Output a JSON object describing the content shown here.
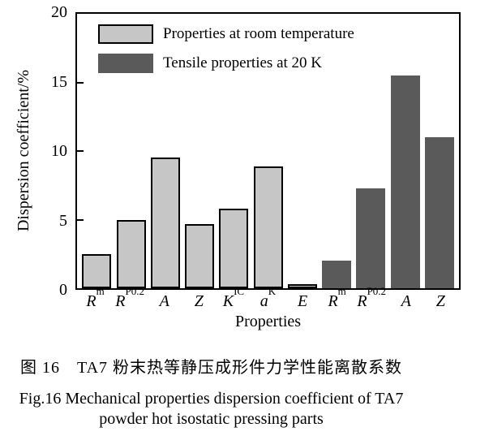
{
  "chart_data": {
    "type": "bar",
    "title": "",
    "xlabel": "Properties",
    "ylabel": "Dispersion coefficient/%",
    "ylim": [
      0,
      20
    ],
    "yticks": [
      0,
      5,
      10,
      15,
      20
    ],
    "yticks_inner": [
      5,
      10,
      15
    ],
    "grid": false,
    "legend_position": "top-left-inside",
    "categories": [
      "Rm",
      "RP0.2",
      "A",
      "Z",
      "KIC",
      "aK",
      "E",
      "Rm",
      "RP0.2",
      "A",
      "Z"
    ],
    "bars": [
      {
        "main": "R",
        "sub": "m",
        "value": 2.5,
        "series": "room"
      },
      {
        "main": "R",
        "sub": "P0.2",
        "value": 5.0,
        "series": "room"
      },
      {
        "main": "A",
        "sub": "",
        "value": 9.5,
        "series": "room"
      },
      {
        "main": "Z",
        "sub": "",
        "value": 4.7,
        "series": "room"
      },
      {
        "main": "K",
        "sub": "IC",
        "value": 5.8,
        "series": "room"
      },
      {
        "main": "a",
        "sub": "K",
        "value": 8.9,
        "series": "room"
      },
      {
        "main": "E",
        "sub": "",
        "value": 0.3,
        "series": "room"
      },
      {
        "main": "R",
        "sub": "m",
        "value": 2.0,
        "series": "cryo"
      },
      {
        "main": "R",
        "sub": "P0.2",
        "value": 7.3,
        "series": "cryo"
      },
      {
        "main": "A",
        "sub": "",
        "value": 15.5,
        "series": "cryo"
      },
      {
        "main": "Z",
        "sub": "",
        "value": 11.0,
        "series": "cryo"
      }
    ],
    "legend": [
      {
        "series": "room",
        "label": "Properties at room temperature",
        "color": "#c6c6c6",
        "outlined": true
      },
      {
        "series": "cryo",
        "label": "Tensile properties at 20 K",
        "color": "#5a5a5a",
        "outlined": false
      }
    ]
  },
  "colors": {
    "bar_light": "#c6c6c6",
    "bar_dark": "#5a5a5a",
    "axis": "#000000",
    "background": "#ffffff"
  },
  "captions": {
    "chinese": "图 16　TA7 粉末热等静压成形件力学性能离散系数",
    "english_line1": "Fig.16 Mechanical properties dispersion coefficient of TA7",
    "english_line2": "powder hot isostatic pressing parts"
  }
}
